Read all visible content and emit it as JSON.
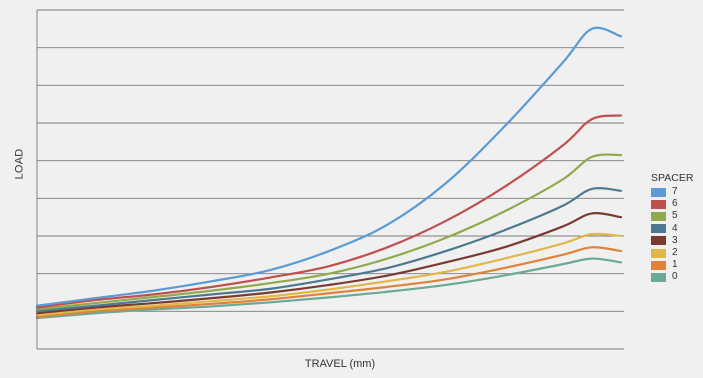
{
  "chart_data": {
    "type": "line",
    "xlabel": "TRAVEL (mm)",
    "ylabel": "LOAD",
    "ticks_labeled": false,
    "grid": true,
    "legend": {
      "title": "SPACER",
      "placement": "right"
    },
    "x": [
      0,
      0.1,
      0.2,
      0.3,
      0.4,
      0.5,
      0.6,
      0.7,
      0.8,
      0.9,
      0.95,
      1.0
    ],
    "ylim": [
      0,
      9
    ],
    "series": [
      {
        "name": "7",
        "color": "#5b9bd5",
        "values": [
          1.15,
          1.35,
          1.55,
          1.8,
          2.1,
          2.6,
          3.3,
          4.4,
          5.9,
          7.6,
          8.5,
          8.3
        ]
      },
      {
        "name": "6",
        "color": "#c0504d",
        "values": [
          1.1,
          1.3,
          1.45,
          1.65,
          1.9,
          2.2,
          2.7,
          3.4,
          4.3,
          5.4,
          6.1,
          6.2
        ]
      },
      {
        "name": "5",
        "color": "#8faa4a",
        "values": [
          1.05,
          1.22,
          1.38,
          1.55,
          1.75,
          2.0,
          2.4,
          2.95,
          3.65,
          4.5,
          5.1,
          5.15
        ]
      },
      {
        "name": "4",
        "color": "#4d7990",
        "values": [
          1.0,
          1.15,
          1.3,
          1.45,
          1.6,
          1.85,
          2.15,
          2.6,
          3.15,
          3.8,
          4.25,
          4.2
        ]
      },
      {
        "name": "3",
        "color": "#7a3a32",
        "values": [
          0.95,
          1.1,
          1.22,
          1.35,
          1.5,
          1.7,
          1.95,
          2.3,
          2.7,
          3.25,
          3.6,
          3.5
        ]
      },
      {
        "name": "2",
        "color": "#e0b84a",
        "values": [
          0.9,
          1.05,
          1.15,
          1.27,
          1.4,
          1.58,
          1.8,
          2.05,
          2.4,
          2.8,
          3.05,
          3.0
        ]
      },
      {
        "name": "1",
        "color": "#e08238",
        "values": [
          0.85,
          1.0,
          1.1,
          1.2,
          1.32,
          1.48,
          1.65,
          1.85,
          2.15,
          2.5,
          2.7,
          2.6
        ]
      },
      {
        "name": "0",
        "color": "#6aa899",
        "values": [
          0.82,
          0.95,
          1.05,
          1.13,
          1.24,
          1.37,
          1.52,
          1.7,
          1.95,
          2.25,
          2.4,
          2.3
        ]
      }
    ]
  }
}
